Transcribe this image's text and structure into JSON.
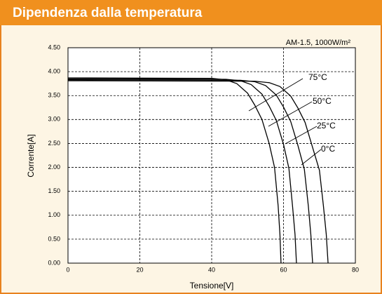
{
  "chart_data": {
    "type": "line",
    "title": "Dipendenza dalla temperatura",
    "subtitle": "AM-1.5, 1000W/m²",
    "xlabel": "Tensione[V]",
    "ylabel": "Corrente[A]",
    "xlim": [
      0,
      80
    ],
    "ylim": [
      0,
      4.5
    ],
    "xticks": [
      0,
      20,
      40,
      60,
      80
    ],
    "yticks": [
      {
        "value": 0,
        "label": "0.00"
      },
      {
        "value": 0.5,
        "label": "0.50"
      },
      {
        "value": 1,
        "label": "1.00"
      },
      {
        "value": 1.5,
        "label": "1.50"
      },
      {
        "value": 2,
        "label": "2.00"
      },
      {
        "value": 2.5,
        "label": "2.50"
      },
      {
        "value": 3,
        "label": "3.00"
      },
      {
        "value": 3.5,
        "label": "3.50"
      },
      {
        "value": 4,
        "label": "4.00"
      },
      {
        "value": 4.5,
        "label": "4.50"
      }
    ],
    "grid": true,
    "series": [
      {
        "name": "75°C",
        "color": "#000000",
        "x": [
          0,
          40,
          44,
          47,
          50,
          52,
          54,
          56,
          57.5,
          58.5,
          59,
          59.3
        ],
        "values": [
          3.87,
          3.86,
          3.83,
          3.75,
          3.55,
          3.3,
          3.0,
          2.5,
          2.0,
          1.2,
          0.6,
          0
        ]
      },
      {
        "name": "50°C",
        "color": "#000000",
        "x": [
          0,
          44,
          48,
          51,
          54,
          56,
          58,
          60,
          61.5,
          62.5,
          63.2,
          63.6
        ],
        "values": [
          3.85,
          3.84,
          3.81,
          3.73,
          3.53,
          3.28,
          2.98,
          2.48,
          1.98,
          1.2,
          0.6,
          0
        ]
      },
      {
        "name": "25°C",
        "color": "#000000",
        "x": [
          0,
          48,
          52,
          55,
          58,
          60,
          62,
          64,
          65.8,
          66.9,
          67.6,
          68.1
        ],
        "values": [
          3.83,
          3.82,
          3.79,
          3.71,
          3.51,
          3.26,
          2.96,
          2.46,
          1.96,
          1.2,
          0.6,
          0
        ]
      },
      {
        "name": "0°C",
        "color": "#000000",
        "x": [
          0,
          52,
          56,
          59,
          62,
          64,
          66,
          68,
          70,
          71.1,
          71.9,
          72.4
        ],
        "values": [
          3.81,
          3.8,
          3.77,
          3.69,
          3.49,
          3.24,
          2.94,
          2.44,
          1.94,
          1.2,
          0.6,
          0
        ]
      }
    ]
  }
}
